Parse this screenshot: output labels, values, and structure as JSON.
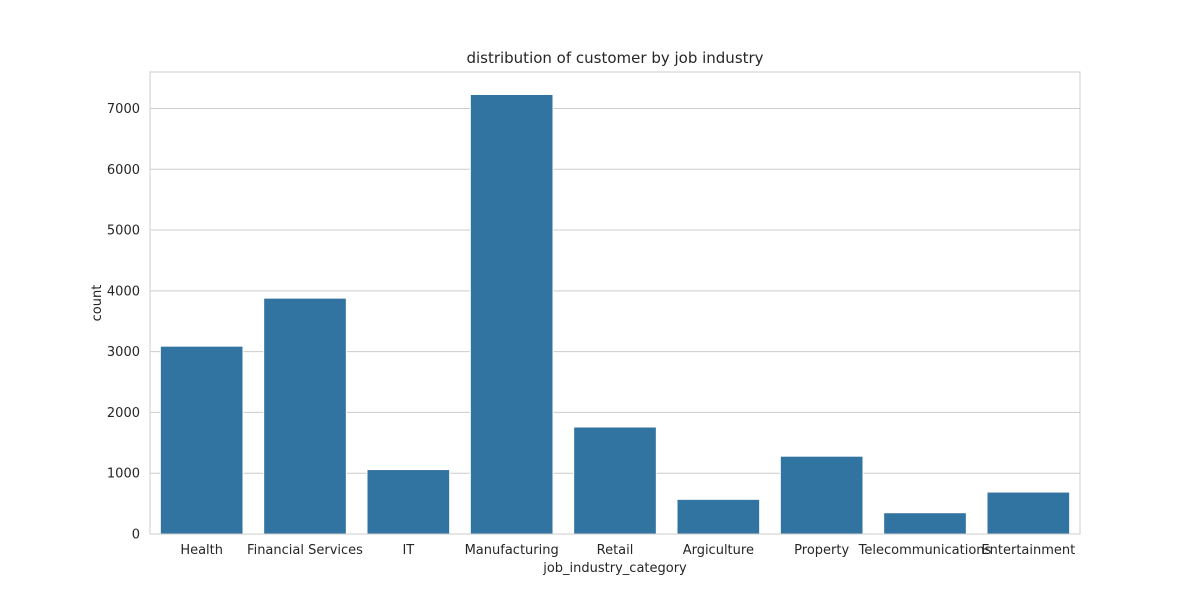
{
  "chart_data": {
    "type": "bar",
    "title": "distribution of customer by job industry",
    "xlabel": "job_industry_category",
    "ylabel": "count",
    "categories": [
      "Health",
      "Financial Services",
      "IT",
      "Manufacturing",
      "Retail",
      "Argiculture",
      "Property",
      "Telecommunications",
      "Entertainment"
    ],
    "values": [
      3090,
      3880,
      1060,
      7230,
      1760,
      570,
      1280,
      350,
      690
    ],
    "ylim": [
      0,
      7600
    ],
    "yticks": [
      0,
      1000,
      2000,
      3000,
      4000,
      5000,
      6000,
      7000
    ],
    "grid": "horizontal",
    "legend": "none",
    "colors": {
      "bar": "#3274a1",
      "bar_edge": "#ffffff",
      "grid": "#cccccc",
      "frame": "#cccccc",
      "text": "#262626"
    }
  }
}
